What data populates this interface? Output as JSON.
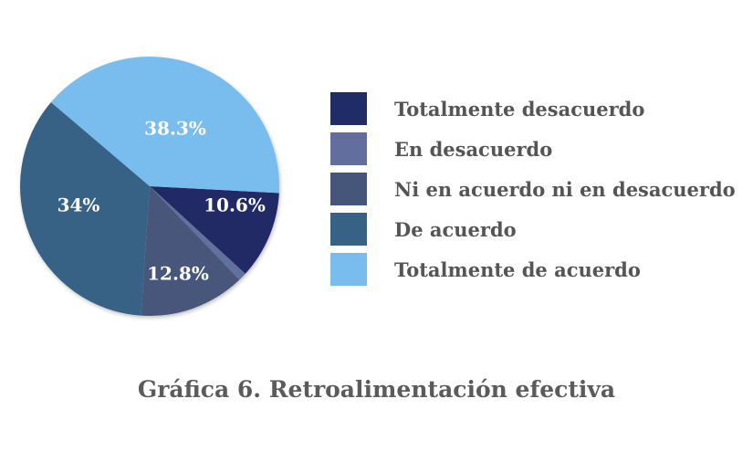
{
  "chart_data": {
    "type": "pie",
    "title": "Gráfica 6. Retroalimentación efectiva",
    "legend_position": "right",
    "slices": [
      {
        "name": "Totalmente desacuerdo",
        "value": 10.6,
        "label": "10.6%",
        "color": "#202c66"
      },
      {
        "name": "En desacuerdo",
        "value": 1.0,
        "label": "",
        "color": "#626f9e"
      },
      {
        "name": "Ni en acuerdo ni en desacuerdo",
        "value": 12.8,
        "label": "12.8%",
        "color": "#46567a"
      },
      {
        "name": "De acuerdo",
        "value": 34,
        "label": "34%",
        "color": "#376285"
      },
      {
        "name": "Totalmente de acuerdo",
        "value": 38.3,
        "label": "38.3%",
        "color": "#79bdee"
      }
    ]
  }
}
